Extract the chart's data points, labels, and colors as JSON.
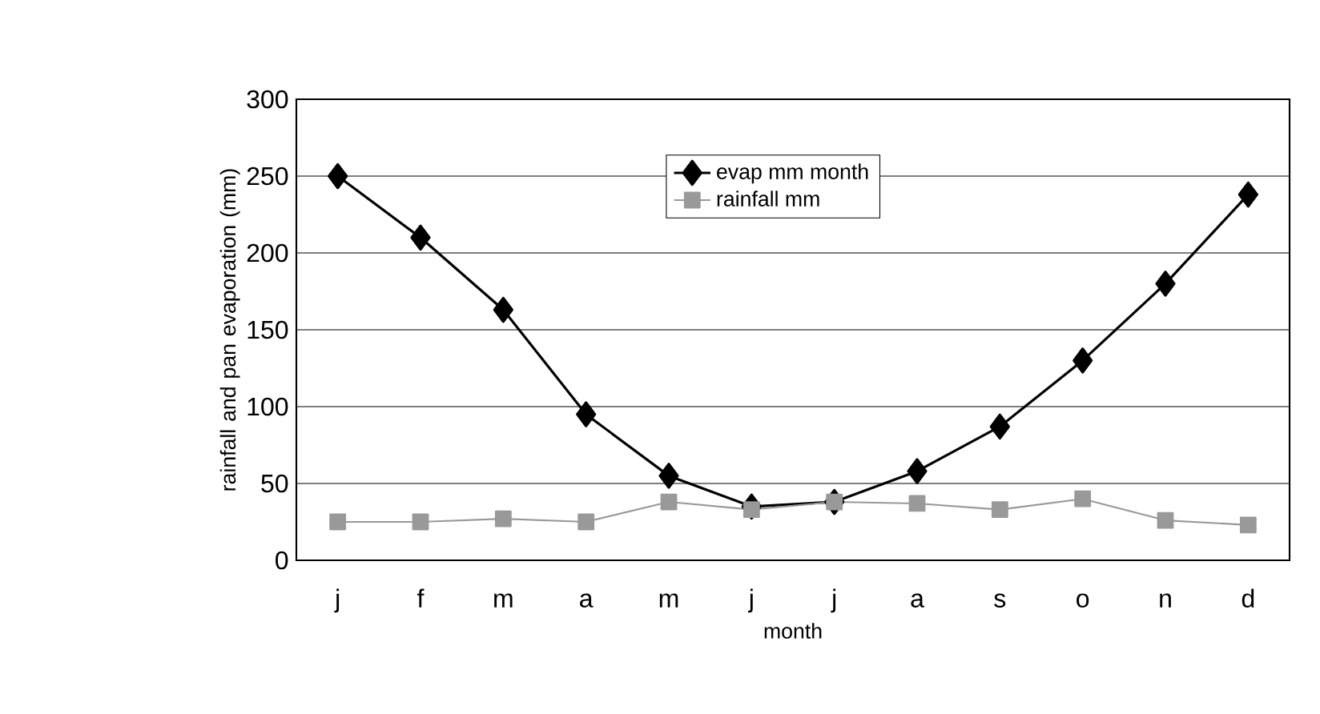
{
  "chart_data": {
    "type": "line",
    "xlabel": "month",
    "ylabel": "rainfall and pan evaporation (mm)",
    "categories": [
      "j",
      "f",
      "m",
      "a",
      "m",
      "j",
      "j",
      "a",
      "s",
      "o",
      "n",
      "d"
    ],
    "series": [
      {
        "name": "evap mm month",
        "color": "#000000",
        "marker": "diamond",
        "values": [
          250,
          210,
          163,
          95,
          55,
          35,
          38,
          58,
          87,
          130,
          180,
          238
        ]
      },
      {
        "name": "rainfall mm",
        "color": "#999999",
        "marker": "square",
        "values": [
          25,
          25,
          27,
          25,
          38,
          33,
          38,
          37,
          33,
          40,
          26,
          23
        ]
      }
    ],
    "ylim": [
      0,
      300
    ],
    "yticks": [
      0,
      50,
      100,
      150,
      200,
      250,
      300
    ],
    "grid": "y",
    "legend": "top",
    "line_style": "solid"
  }
}
